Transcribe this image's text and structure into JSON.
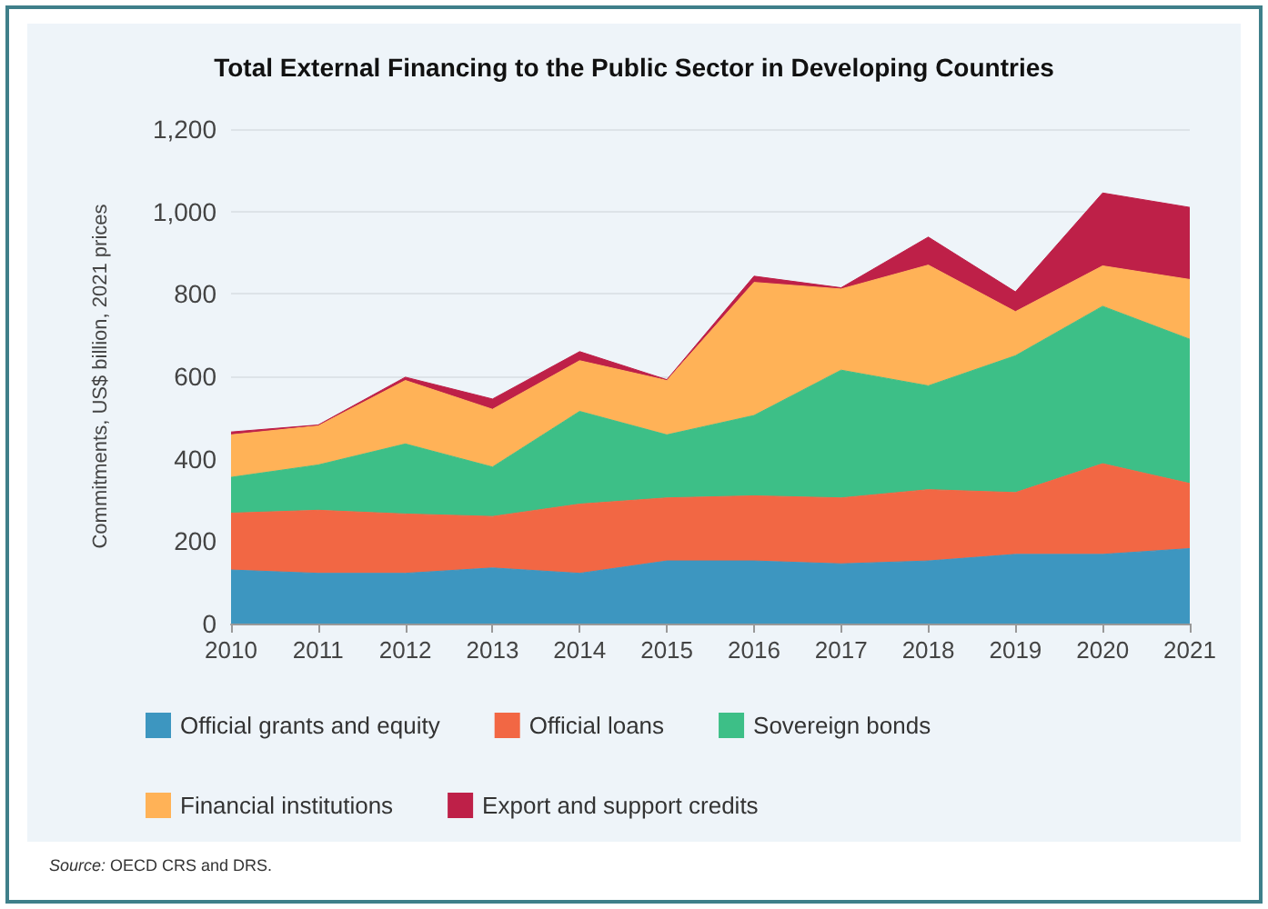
{
  "chart_data": {
    "type": "area",
    "stacked": true,
    "title": "Total External Financing to the Public Sector in Developing Countries",
    "ylabel": "Commitments, US$ billion, 2021 prices",
    "categories": [
      "2010",
      "2011",
      "2012",
      "2013",
      "2014",
      "2015",
      "2016",
      "2017",
      "2018",
      "2019",
      "2020",
      "2021"
    ],
    "series": [
      {
        "name": "Official grants and equity",
        "color": "#3d96c0",
        "values": [
          130,
          122,
          122,
          135,
          122,
          152,
          152,
          145,
          152,
          168,
          168,
          182
        ]
      },
      {
        "name": "Official loans",
        "color": "#f26744",
        "values": [
          138,
          153,
          144,
          125,
          168,
          153,
          158,
          160,
          173,
          150,
          220,
          158
        ]
      },
      {
        "name": "Sovereign bonds",
        "color": "#3dbf87",
        "values": [
          87,
          110,
          170,
          120,
          225,
          153,
          195,
          310,
          252,
          332,
          382,
          350
        ]
      },
      {
        "name": "Financial institutions",
        "color": "#ffb257",
        "values": [
          103,
          95,
          154,
          140,
          123,
          132,
          323,
          197,
          293,
          107,
          98,
          145
        ]
      },
      {
        "name": "Export and support credits",
        "color": "#be2048",
        "values": [
          7,
          2,
          8,
          25,
          22,
          2,
          15,
          3,
          68,
          48,
          177,
          175
        ]
      }
    ],
    "ylim": [
      0,
      1200
    ],
    "yticks": [
      0,
      200,
      400,
      600,
      800,
      {
        "value": 1000,
        "label": "1,000"
      },
      {
        "value": 1200,
        "label": "1,200"
      }
    ],
    "grid": "y",
    "legend": "bottom",
    "marker": "none",
    "annotations": [
      "Source: OECD CRS and DRS."
    ]
  }
}
